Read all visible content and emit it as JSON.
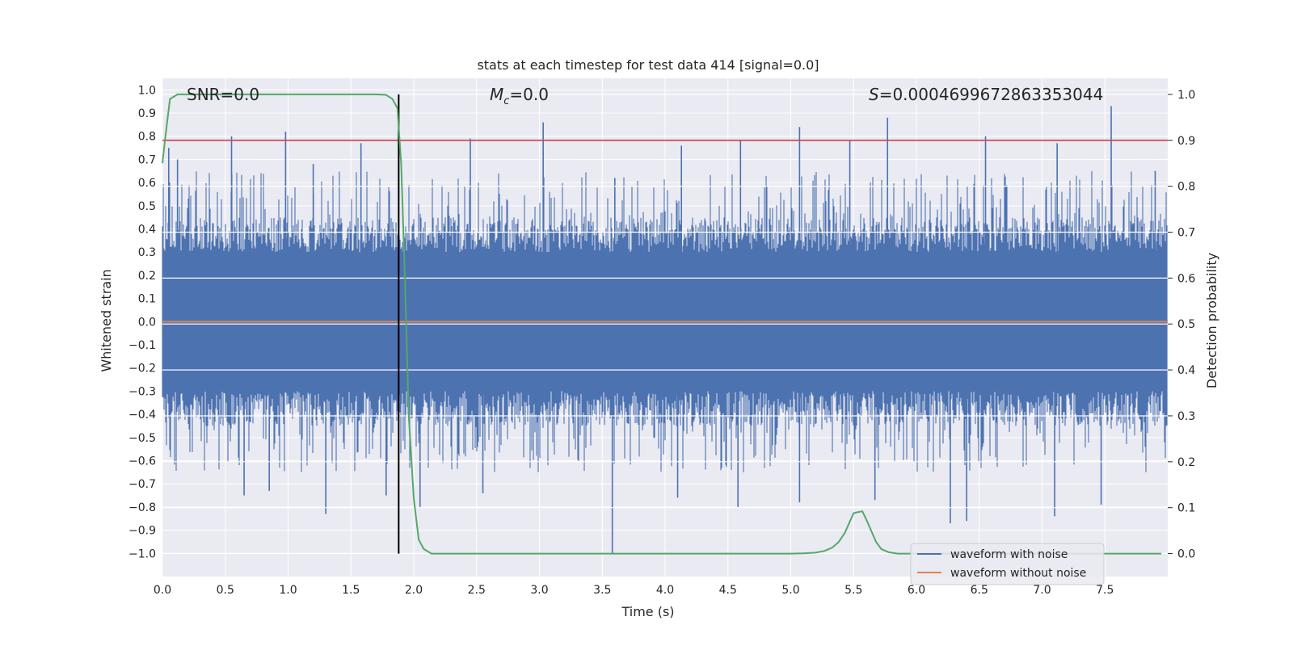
{
  "chart_data": {
    "type": "line",
    "title": "stats at each timestep for test data 414 [signal=0.0]",
    "xlabel": "Time (s)",
    "ylabel": "Whitened strain",
    "y2label": "Detection probability",
    "xlim": [
      0.0,
      8.0
    ],
    "ylim": [
      -1.1,
      1.05
    ],
    "y2lim": [
      -0.05,
      1.035
    ],
    "xticks": [
      0.0,
      0.5,
      1.0,
      1.5,
      2.0,
      2.5,
      3.0,
      3.5,
      4.0,
      4.5,
      5.0,
      5.5,
      6.0,
      6.5,
      7.0,
      7.5
    ],
    "xtick_labels": [
      "0.0",
      "0.5",
      "1.0",
      "1.5",
      "2.0",
      "2.5",
      "3.0",
      "3.5",
      "4.0",
      "4.5",
      "5.0",
      "5.5",
      "6.0",
      "6.5",
      "7.0",
      "7.5"
    ],
    "yticks": [
      1.0,
      0.9,
      0.8,
      0.7,
      0.6,
      0.5,
      0.4,
      0.3,
      0.2,
      0.1,
      0.0,
      -0.1,
      -0.2,
      -0.3,
      -0.4,
      -0.5,
      -0.6,
      -0.7,
      -0.8,
      -0.9,
      -1.0
    ],
    "ytick_labels": [
      "1.0",
      "0.9",
      "0.8",
      "0.7",
      "0.6",
      "0.5",
      "0.4",
      "0.3",
      "0.2",
      "0.1",
      "0.0",
      "−0.1",
      "−0.2",
      "−0.3",
      "−0.4",
      "−0.5",
      "−0.6",
      "−0.7",
      "−0.8",
      "−0.9",
      "−1.0"
    ],
    "y2ticks": [
      1.0,
      0.9,
      0.8,
      0.7,
      0.6,
      0.5,
      0.4,
      0.3,
      0.2,
      0.1,
      0.0
    ],
    "y2tick_labels": [
      "1.0",
      "0.9",
      "0.8",
      "0.7",
      "0.6",
      "0.5",
      "0.4",
      "0.3",
      "0.2",
      "0.1",
      "0.0"
    ],
    "annotations": {
      "snr": "SNR=0.0",
      "mc_symbol": "M",
      "mc_sub": "c",
      "mc_value": "=0.0",
      "s_symbol": "S",
      "s_value": "=0.0004699672863353044"
    },
    "series": [
      {
        "name": "waveform with noise",
        "color": "#4c72b0",
        "description": "dense noise, typical envelope ±0.4, spikes up to ~0.93 and down to ~−1.0",
        "spikes": [
          {
            "x": 0.05,
            "y": 0.75
          },
          {
            "x": 0.12,
            "y": 0.7
          },
          {
            "x": 0.55,
            "y": 0.8
          },
          {
            "x": 0.98,
            "y": 0.82
          },
          {
            "x": 1.2,
            "y": 0.68
          },
          {
            "x": 1.58,
            "y": 0.77
          },
          {
            "x": 1.88,
            "y": 0.8
          },
          {
            "x": 2.45,
            "y": 0.79
          },
          {
            "x": 3.03,
            "y": 0.86
          },
          {
            "x": 3.6,
            "y": 0.62
          },
          {
            "x": 4.13,
            "y": 0.76
          },
          {
            "x": 4.6,
            "y": 0.78
          },
          {
            "x": 5.07,
            "y": 0.84
          },
          {
            "x": 5.47,
            "y": 0.78
          },
          {
            "x": 5.77,
            "y": 0.88
          },
          {
            "x": 6.55,
            "y": 0.8
          },
          {
            "x": 7.12,
            "y": 0.77
          },
          {
            "x": 7.55,
            "y": 0.93
          },
          {
            "x": 7.9,
            "y": 0.65
          },
          {
            "x": 0.65,
            "y": -0.75
          },
          {
            "x": 0.85,
            "y": -0.73
          },
          {
            "x": 1.3,
            "y": -0.83
          },
          {
            "x": 1.78,
            "y": -0.75
          },
          {
            "x": 2.05,
            "y": -0.8
          },
          {
            "x": 2.55,
            "y": -0.74
          },
          {
            "x": 3.58,
            "y": -1.0
          },
          {
            "x": 4.1,
            "y": -0.76
          },
          {
            "x": 4.58,
            "y": -0.8
          },
          {
            "x": 5.07,
            "y": -0.78
          },
          {
            "x": 5.67,
            "y": -0.77
          },
          {
            "x": 6.27,
            "y": -0.87
          },
          {
            "x": 6.4,
            "y": -0.86
          },
          {
            "x": 7.1,
            "y": -0.84
          },
          {
            "x": 7.47,
            "y": -0.79
          }
        ]
      },
      {
        "name": "waveform without noise",
        "color": "#dd8452",
        "x": [
          0.0,
          8.0
        ],
        "y": [
          0.0,
          0.0
        ]
      },
      {
        "name": "detection probability",
        "color": "#55a868",
        "axis": "right",
        "x": [
          0.0,
          0.02,
          0.06,
          0.12,
          0.3,
          0.6,
          1.0,
          1.4,
          1.7,
          1.78,
          1.83,
          1.87,
          1.9,
          1.93,
          1.96,
          2.0,
          2.04,
          2.08,
          2.14,
          2.3,
          3.0,
          4.0,
          4.6,
          5.0,
          5.1,
          5.2,
          5.27,
          5.33,
          5.38,
          5.43,
          5.47,
          5.5,
          5.53,
          5.57,
          5.6,
          5.64,
          5.68,
          5.72,
          5.78,
          5.85,
          6.0,
          7.0,
          7.95
        ],
        "y": [
          0.85,
          0.9,
          0.99,
          1.0,
          1.0,
          1.0,
          1.0,
          1.0,
          1.0,
          0.999,
          0.99,
          0.97,
          0.85,
          0.6,
          0.3,
          0.12,
          0.03,
          0.01,
          0.0,
          0.0,
          0.0,
          0.0,
          0.0,
          0.0,
          0.0005,
          0.002,
          0.006,
          0.013,
          0.025,
          0.045,
          0.07,
          0.088,
          0.09,
          0.092,
          0.075,
          0.05,
          0.025,
          0.01,
          0.003,
          0.0,
          0.0,
          0.0,
          0.0
        ]
      }
    ],
    "hlines": [
      {
        "name": "threshold",
        "y": 0.9,
        "axis": "right",
        "color": "#c44e52"
      }
    ],
    "vlines": [
      {
        "name": "marker",
        "x": 1.88,
        "color": "#000000",
        "y_from": 0.0,
        "y_to": 1.0,
        "axis": "right"
      }
    ],
    "legend": {
      "position": "lower-right",
      "entries": [
        {
          "label": "waveform with noise",
          "color": "#4c72b0"
        },
        {
          "label": "waveform without noise",
          "color": "#dd8452"
        }
      ]
    },
    "background": "#eaeaf2",
    "grid": true
  }
}
